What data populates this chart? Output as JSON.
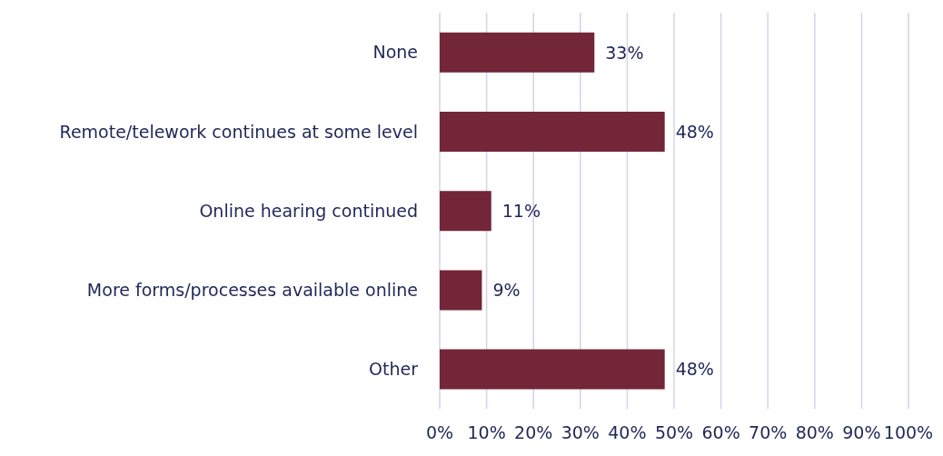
{
  "chart_data": {
    "type": "bar",
    "orientation": "horizontal",
    "categories": [
      "None",
      "Remote/telework continues at some level",
      "Online hearing continued",
      "More forms/processes available online",
      "Other"
    ],
    "values": [
      33,
      48,
      11,
      9,
      48
    ],
    "color": "#722637",
    "value_labels": [
      "33%",
      "48%",
      "11%",
      "9%",
      "48%"
    ],
    "xlim": [
      0,
      100
    ],
    "xticks": [
      {
        "value": 0,
        "label": "0%"
      },
      {
        "value": 10,
        "label": "10%"
      },
      {
        "value": 20,
        "label": "20%"
      },
      {
        "value": 30,
        "label": "30%"
      },
      {
        "value": 40,
        "label": "40%"
      },
      {
        "value": 50,
        "label": "50%"
      },
      {
        "value": 60,
        "label": "60%"
      },
      {
        "value": 70,
        "label": "70%"
      },
      {
        "value": 80,
        "label": "80%"
      },
      {
        "value": 90,
        "label": "90%"
      },
      {
        "value": 100,
        "label": "100%"
      }
    ],
    "grid": "x"
  }
}
